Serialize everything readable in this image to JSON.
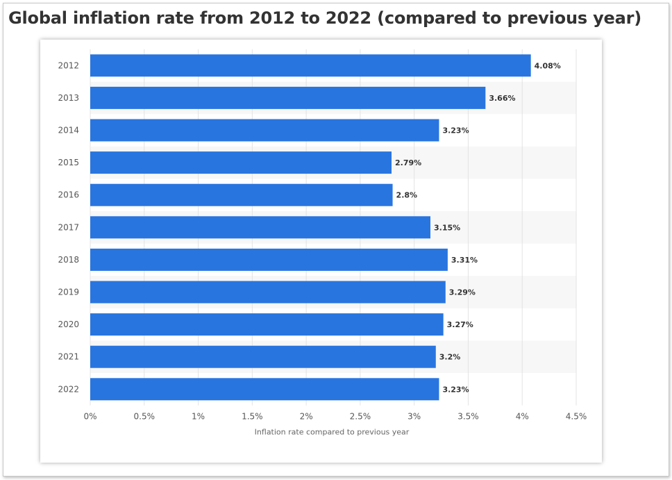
{
  "chart_data": {
    "type": "bar",
    "orientation": "horizontal",
    "title": "Global inflation rate from 2012 to 2022 (compared to previous year)",
    "categories": [
      "2012",
      "2013",
      "2014",
      "2015",
      "2016",
      "2017",
      "2018",
      "2019",
      "2020",
      "2021",
      "2022"
    ],
    "values": [
      4.08,
      3.66,
      3.23,
      2.79,
      2.8,
      3.15,
      3.31,
      3.29,
      3.27,
      3.2,
      3.23
    ],
    "data_labels": [
      "4.08%",
      "3.66%",
      "3.23%",
      "2.79%",
      "2.8%",
      "3.15%",
      "3.31%",
      "3.29%",
      "3.27%",
      "3.2%",
      "3.23%"
    ],
    "xlabel": "Inflation rate compared to previous year",
    "ylabel": "",
    "xlim": [
      0,
      4.5
    ],
    "x_ticks": [
      0,
      0.5,
      1,
      1.5,
      2,
      2.5,
      3,
      3.5,
      4,
      4.5
    ],
    "x_tick_labels": [
      "0%",
      "0.5%",
      "1%",
      "1.5%",
      "2%",
      "2.5%",
      "3%",
      "3.5%",
      "4%",
      "4.5%"
    ],
    "grid": true,
    "colors": {
      "bar": "#2875e0",
      "band": "#f7f7f7",
      "grid": "#e3e3e3"
    }
  }
}
